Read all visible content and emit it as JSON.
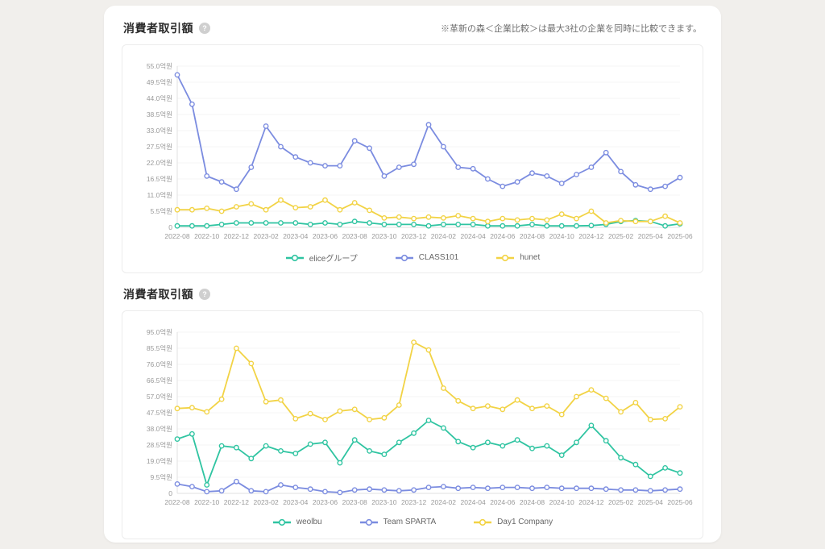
{
  "page": {
    "note": "※革新の森＜企業比較＞は最大3社の企業を同時に比較できます。",
    "help_icon_glyph": "?"
  },
  "sections": [
    {
      "title": "消費者取引額"
    },
    {
      "title": "消費者取引額"
    }
  ],
  "chart_data": [
    {
      "type": "line",
      "title": "消費者取引額",
      "unit": "억원",
      "grid": true,
      "legend_position": "bottom",
      "x": [
        "2022-08",
        "2022-09",
        "2022-10",
        "2022-11",
        "2022-12",
        "2023-01",
        "2023-02",
        "2023-03",
        "2023-04",
        "2023-05",
        "2023-06",
        "2023-07",
        "2023-08",
        "2023-09",
        "2023-10",
        "2023-11",
        "2023-12",
        "2024-01",
        "2024-02",
        "2024-03",
        "2024-04",
        "2024-05",
        "2024-06",
        "2024-07",
        "2024-08",
        "2024-09",
        "2024-10",
        "2024-11",
        "2024-12",
        "2025-01",
        "2025-02",
        "2025-03",
        "2025-04",
        "2025-05",
        "2025-06"
      ],
      "x_tick_step": 2,
      "ylim": [
        0,
        55
      ],
      "y_tick_labels": [
        "55.0억원",
        "49.5억원",
        "44.0억원",
        "38.5억원",
        "33.0억원",
        "27.5억원",
        "22.0억원",
        "16.5억원",
        "11.0억원",
        "5.5억원",
        "0"
      ],
      "series": [
        {
          "name": "eliceグループ",
          "color": "#2fc4a1",
          "values": [
            0.5,
            0.5,
            0.5,
            1,
            1.5,
            1.5,
            1.5,
            1.5,
            1.5,
            1,
            1.5,
            1,
            2,
            1.5,
            1,
            1,
            1,
            0.5,
            1,
            1,
            1,
            0.5,
            0.5,
            0.5,
            1,
            0.5,
            0.5,
            0.5,
            0.6,
            1,
            2,
            2.3,
            2,
            0.5,
            1.2
          ]
        },
        {
          "name": "CLASS101",
          "color": "#7b8ce0",
          "values": [
            52,
            42,
            17.5,
            15.5,
            13,
            20.5,
            34.5,
            27.5,
            24,
            22,
            21,
            21,
            29.5,
            27,
            17.5,
            20.5,
            21.5,
            35,
            27.5,
            20.5,
            20,
            16.5,
            14,
            15.5,
            18.5,
            17.5,
            15,
            18,
            20.5,
            25.5,
            19,
            14.5,
            13,
            14,
            17
          ]
        },
        {
          "name": "hunet",
          "color": "#f2d345",
          "values": [
            6,
            6,
            6.5,
            5.5,
            7,
            8,
            6,
            9.3,
            6.7,
            7,
            9.3,
            6,
            8.4,
            5.8,
            3.2,
            3.5,
            3,
            3.5,
            3.2,
            4,
            3,
            2,
            3,
            2.5,
            3,
            2.5,
            4.5,
            3,
            5.5,
            1.5,
            2.3,
            2,
            2,
            3.8,
            1.5
          ]
        }
      ]
    },
    {
      "type": "line",
      "title": "消費者取引額",
      "unit": "억원",
      "grid": true,
      "legend_position": "bottom",
      "x": [
        "2022-08",
        "2022-09",
        "2022-10",
        "2022-11",
        "2022-12",
        "2023-01",
        "2023-02",
        "2023-03",
        "2023-04",
        "2023-05",
        "2023-06",
        "2023-07",
        "2023-08",
        "2023-09",
        "2023-10",
        "2023-11",
        "2023-12",
        "2024-01",
        "2024-02",
        "2024-03",
        "2024-04",
        "2024-05",
        "2024-06",
        "2024-07",
        "2024-08",
        "2024-09",
        "2024-10",
        "2024-11",
        "2024-12",
        "2025-01",
        "2025-02",
        "2025-03",
        "2025-04",
        "2025-05",
        "2025-06"
      ],
      "x_tick_step": 2,
      "ylim": [
        0,
        95
      ],
      "y_tick_labels": [
        "95.0억원",
        "85.5억원",
        "76.0억원",
        "66.5억원",
        "57.0억원",
        "47.5억원",
        "38.0억원",
        "28.5억원",
        "19.0억원",
        "9.5억원",
        "0"
      ],
      "series": [
        {
          "name": "weolbu",
          "color": "#2fc4a1",
          "values": [
            32,
            35,
            5,
            28,
            27,
            20.5,
            28,
            25,
            23.5,
            29,
            30,
            18,
            31.5,
            25,
            23,
            30,
            35.5,
            43,
            38.5,
            30.5,
            27,
            30,
            28,
            31.5,
            26.5,
            28,
            22.5,
            30,
            40,
            31,
            21,
            17,
            10,
            15,
            12
          ]
        },
        {
          "name": "Team SPARTA",
          "color": "#7b8ce0",
          "values": [
            5.5,
            4,
            1,
            1.5,
            7,
            1.5,
            1,
            5,
            3.5,
            2.5,
            1,
            0.5,
            2,
            2.5,
            2,
            1.5,
            2,
            3.5,
            4,
            3,
            3.5,
            3,
            3.5,
            3.5,
            3,
            3.5,
            3,
            3,
            3,
            2.5,
            2,
            2,
            1.5,
            2,
            2.5
          ]
        },
        {
          "name": "Day1 Company",
          "color": "#f2d345",
          "values": [
            50,
            50.5,
            48,
            55.5,
            85.5,
            76.5,
            54,
            55,
            44,
            47,
            43.5,
            48.5,
            49.5,
            43.5,
            44.5,
            52,
            89,
            84.5,
            62,
            54.5,
            50,
            51.5,
            49.5,
            55,
            50,
            51.5,
            46.5,
            57,
            61,
            56,
            48,
            53.5,
            43.5,
            44,
            51
          ]
        }
      ]
    }
  ]
}
